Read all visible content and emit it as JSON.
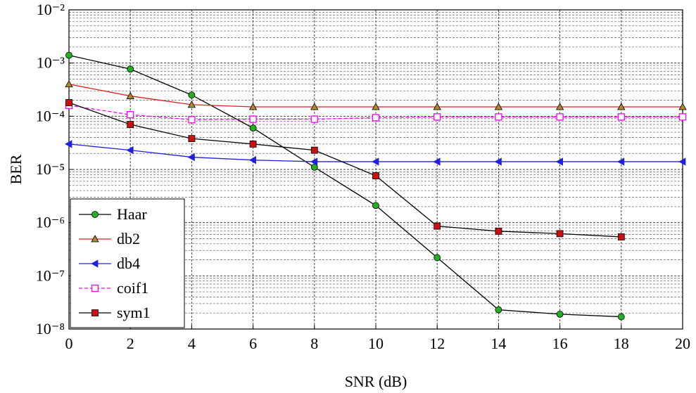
{
  "chart_data": {
    "type": "line",
    "x_label": "SNR (dB)",
    "y_label": "BER",
    "x": [
      0,
      2,
      4,
      6,
      8,
      10,
      12,
      14,
      16,
      18,
      20
    ],
    "xlim": [
      0,
      20
    ],
    "xticks": [
      0,
      2,
      4,
      6,
      8,
      10,
      12,
      14,
      16,
      18,
      20
    ],
    "ylim": [
      1e-08,
      0.01
    ],
    "y_log": true,
    "grid": true,
    "minor_grid": true,
    "yticks": [
      {
        "value": 1e-08,
        "label": "10⁻⁸"
      },
      {
        "value": 1e-07,
        "label": "10⁻⁷"
      },
      {
        "value": 1e-06,
        "label": "10⁻⁶"
      },
      {
        "value": 1e-05,
        "label": "10⁻⁵"
      },
      {
        "value": 0.0001,
        "label": "10⁻⁴"
      },
      {
        "value": 0.001,
        "label": "10⁻³"
      },
      {
        "value": 0.01,
        "label": "10⁻²"
      }
    ],
    "legend": "lower left",
    "series": [
      {
        "name": "Haar",
        "color": "#000000",
        "marker": "circle",
        "marker_color": "#22b022",
        "dash": false,
        "values": [
          0.0014,
          0.00077,
          0.00025,
          6e-05,
          1.1e-05,
          2.1e-06,
          2.2e-07,
          2.3e-08,
          1.9e-08,
          1.7e-08,
          null
        ]
      },
      {
        "name": "db2",
        "color": "#e02020",
        "marker": "triangle-up",
        "marker_color": "#b08830",
        "dash": false,
        "values": [
          0.0004,
          0.00024,
          0.000165,
          0.00015,
          0.00015,
          0.00015,
          0.00015,
          0.00015,
          0.00015,
          0.00015,
          0.00015
        ]
      },
      {
        "name": "db4",
        "color": "#2020e0",
        "marker": "triangle-left",
        "marker_color": "#2020e0",
        "dash": false,
        "values": [
          3e-05,
          2.3e-05,
          1.7e-05,
          1.5e-05,
          1.4e-05,
          1.4e-05,
          1.4e-05,
          1.4e-05,
          1.4e-05,
          1.4e-05,
          1.4e-05
        ]
      },
      {
        "name": "coif1",
        "color": "#ff00ff",
        "marker": "square-open",
        "marker_color": "#ff00ff",
        "dash": true,
        "values": [
          0.00016,
          0.000107,
          8.6e-05,
          8.8e-05,
          8.8e-05,
          9.4e-05,
          9.7e-05,
          9.7e-05,
          9.7e-05,
          9.7e-05,
          9.7e-05
        ]
      },
      {
        "name": "sym1",
        "color": "#000000",
        "marker": "square",
        "marker_color": "#cc1010",
        "dash": false,
        "values": [
          0.00018,
          7e-05,
          3.8e-05,
          3e-05,
          2.3e-05,
          7.6e-06,
          8.6e-07,
          6.9e-07,
          6.2e-07,
          5.4e-07,
          null
        ]
      }
    ]
  }
}
